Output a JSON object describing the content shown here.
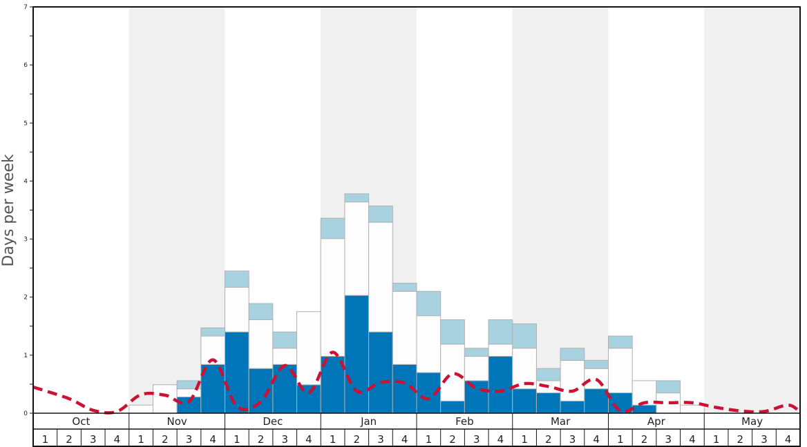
{
  "chart_data": {
    "type": "bar",
    "ylabel": "Days per week",
    "ylim": [
      0,
      7
    ],
    "yticks": [
      "0",
      "1",
      "2",
      "3",
      "4",
      "5",
      "6",
      "7"
    ],
    "months": [
      "Oct",
      "Nov",
      "Dec",
      "Jan",
      "Feb",
      "Mar",
      "Apr",
      "May"
    ],
    "week_labels": [
      "1",
      "2",
      "3",
      "4"
    ],
    "colors": {
      "dark": "#0075b8",
      "white": "#fdfdfd",
      "light": "#a9d2e0",
      "line": "#cc1133",
      "shade": "#f0f0f0",
      "bar_edge": "#b0b0b0"
    },
    "series": [
      {
        "role": "dark",
        "values": [
          0,
          0,
          0,
          0,
          0,
          0,
          0.28,
          0.84,
          1.4,
          0.77,
          0.84,
          0.49,
          0.98,
          2.03,
          1.4,
          0.84,
          0.7,
          0.21,
          0.56,
          0.98,
          0.42,
          0.35,
          0.21,
          0.42,
          0.35,
          0.14,
          0,
          0,
          0,
          0,
          0,
          0
        ]
      },
      {
        "role": "white",
        "values": [
          0,
          0,
          0,
          0,
          0.14,
          0.49,
          0.14,
          0.49,
          0.77,
          0.84,
          0.28,
          1.26,
          2.03,
          1.61,
          1.89,
          1.26,
          0.98,
          0.98,
          0.42,
          0.21,
          0.7,
          0.21,
          0.7,
          0.35,
          0.77,
          0.42,
          0.35,
          0.14,
          0,
          0,
          0,
          0
        ]
      },
      {
        "role": "light",
        "values": [
          0,
          0,
          0,
          0,
          0,
          0,
          0.14,
          0.14,
          0.28,
          0.28,
          0.28,
          0,
          0.35,
          0.14,
          0.28,
          0.14,
          0.42,
          0.42,
          0.14,
          0.42,
          0.42,
          0.21,
          0.21,
          0.14,
          0.21,
          0,
          0.21,
          0,
          0,
          0,
          0,
          0
        ]
      },
      {
        "role": "line",
        "values": [
          0.45,
          0.25,
          0.05,
          0.03,
          0.32,
          0.31,
          0.2,
          0.92,
          0.12,
          0.2,
          0.82,
          0.35,
          1.05,
          0.38,
          0.53,
          0.52,
          0.25,
          0.68,
          0.43,
          0.38,
          0.51,
          0.46,
          0.38,
          0.58,
          0.04,
          0.18,
          0.18,
          0.18,
          0.1,
          0.04,
          0.03,
          0.14
        ]
      }
    ],
    "line_end": 0.02,
    "grid": false,
    "legend": "none"
  }
}
